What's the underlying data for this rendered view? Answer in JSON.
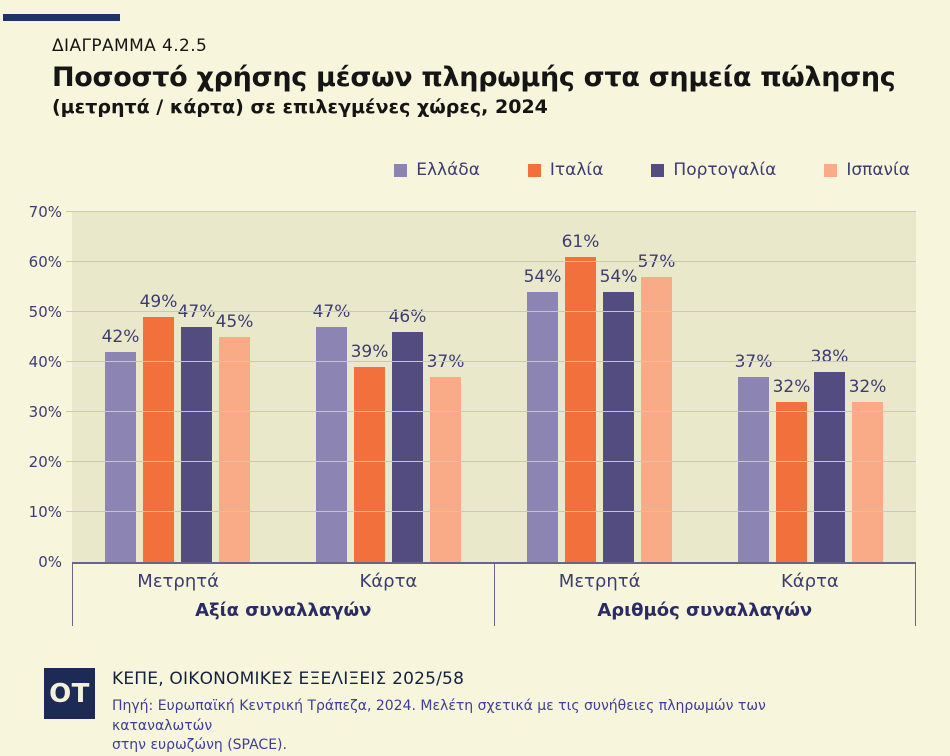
{
  "header": {
    "kicker": "ΔΙΑΓΡΑΜΜΑ 4.2.5",
    "title": "Ποσοστό χρήσης μέσων πληρωμής στα σημεία πώλησης",
    "subtitle": "(μετρητά / κάρτα) σε επιλεγμένες χώρες, 2024"
  },
  "colors": {
    "page_bg": "#f7f5db",
    "plot_bg": "#eae8cb",
    "gridline": "#c7c4d8",
    "axis_line": "#66668c",
    "accent_navy": "#1e3464",
    "label_text": "#3c3c72",
    "group_label_text": "#2b2b66",
    "source_text": "#3e3e9a",
    "logo_bg": "#1e2a56"
  },
  "chart_data": {
    "type": "bar",
    "title": "Ποσοστό χρήσης μέσων πληρωμής στα σημεία πώλησης (μετρητά / κάρτα) σε επιλεγμένες χώρες, 2024",
    "unit": "%",
    "ylim": [
      0,
      70
    ],
    "yticks": [
      0,
      10,
      20,
      30,
      40,
      50,
      60,
      70
    ],
    "grid": true,
    "legend_position": "top-right",
    "group_sections": [
      {
        "key": "value-of-transactions",
        "label": "Αξία συναλλαγών",
        "sub": [
          "Μετρητά",
          "Κάρτα"
        ]
      },
      {
        "key": "number-of-transactions",
        "label": "Αριθμός συναλλαγών",
        "sub": [
          "Μετρητά",
          "Κάρτα"
        ]
      }
    ],
    "categories": [
      "Αξία συναλλαγών – Μετρητά",
      "Αξία συναλλαγών – Κάρτα",
      "Αριθμός συναλλαγών – Μετρητά",
      "Αριθμός συναλλαγών – Κάρτα"
    ],
    "series": [
      {
        "key": "greece",
        "name": "Ελλάδα",
        "color": "#8c84b2",
        "values": [
          42,
          47,
          54,
          37
        ]
      },
      {
        "key": "italy",
        "name": "Ιταλία",
        "color": "#f2703c",
        "values": [
          49,
          39,
          61,
          32
        ]
      },
      {
        "key": "portugal",
        "name": "Πορτογαλία",
        "color": "#534c81",
        "values": [
          47,
          46,
          54,
          38
        ]
      },
      {
        "key": "spain",
        "name": "Ισπανία",
        "color": "#f9ab87",
        "values": [
          45,
          37,
          57,
          32
        ]
      }
    ]
  },
  "footer": {
    "logo": "OT",
    "publication": "ΚΕΠΕ, ΟΙΚΟΝΟΜΙΚΕΣ ΕΞΕΛΙΞΕΙΣ 2025/58",
    "source_line1": "Πηγή: Ευρωπαϊκή Κεντρική Τράπεζα, 2024. Μελέτη σχετικά με τις συνήθειες πληρωμών των καταναλωτών",
    "source_line2": "στην ευρωζώνη (SPACE)."
  }
}
